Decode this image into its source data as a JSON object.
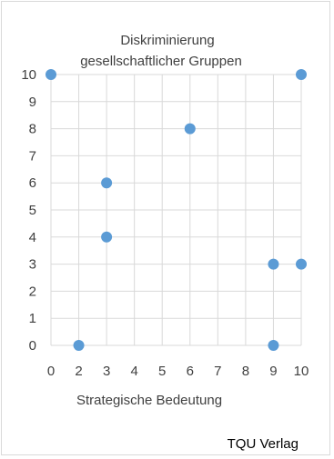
{
  "chart_data": {
    "type": "scatter",
    "title_lines": [
      "Diskriminierung",
      "gesellschaftlicher  Gruppen"
    ],
    "xlabel": "Strategische Bedeutung",
    "ylabel": "",
    "x_ticks": [
      "0",
      "2",
      "3",
      "4",
      "5",
      "6",
      "7",
      "8",
      "9",
      "10"
    ],
    "y_ticks": [
      "0",
      "1",
      "2",
      "3",
      "4",
      "5",
      "6",
      "7",
      "8",
      "9",
      "10"
    ],
    "ylim": [
      0,
      10
    ],
    "grid": true,
    "legend": "none",
    "marker_color": "#5b9bd5",
    "points": [
      {
        "x": "0",
        "y": 10
      },
      {
        "x": "10",
        "y": 10
      },
      {
        "x": "6",
        "y": 8
      },
      {
        "x": "3",
        "y": 6
      },
      {
        "x": "3",
        "y": 4
      },
      {
        "x": "9",
        "y": 3
      },
      {
        "x": "10",
        "y": 3
      },
      {
        "x": "2",
        "y": 0
      },
      {
        "x": "9",
        "y": 0
      }
    ]
  },
  "footer": {
    "publisher": "TQU Verlag"
  }
}
